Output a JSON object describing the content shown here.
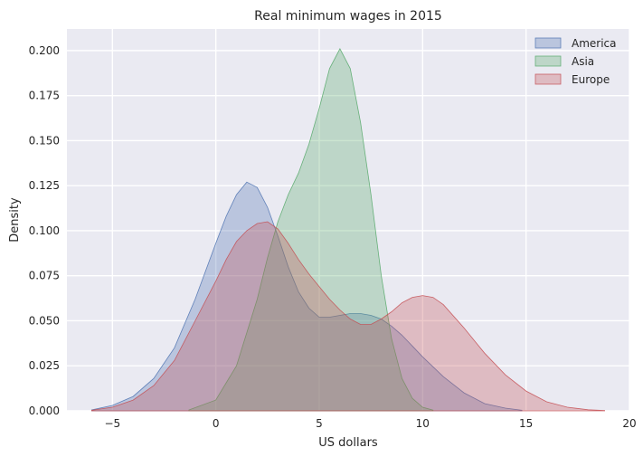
{
  "chart_data": {
    "type": "area",
    "title": "Real minimum wages in 2015",
    "xlabel": "US dollars",
    "ylabel": "Density",
    "xlim": [
      -7.2,
      20
    ],
    "ylim": [
      0,
      0.212
    ],
    "xticks": [
      -5,
      0,
      5,
      10,
      15,
      20
    ],
    "yticks": [
      0.0,
      0.025,
      0.05,
      0.075,
      0.1,
      0.125,
      0.15,
      0.175,
      0.2
    ],
    "ytick_labels": [
      "0.000",
      "0.025",
      "0.050",
      "0.075",
      "0.100",
      "0.125",
      "0.150",
      "0.175",
      "0.200"
    ],
    "grid": true,
    "legend_position": "top-right",
    "series": [
      {
        "name": "America",
        "color": "#4c72b0",
        "x": [
          -6,
          -5,
          -4,
          -3,
          -2,
          -1,
          0,
          0.5,
          1,
          1.5,
          2,
          2.5,
          3,
          3.5,
          4,
          4.5,
          5,
          5.5,
          6,
          6.5,
          7,
          7.5,
          8,
          8.5,
          9,
          9.5,
          10,
          11,
          12,
          13,
          14,
          14.8
        ],
        "y": [
          0.0005,
          0.003,
          0.008,
          0.018,
          0.035,
          0.062,
          0.093,
          0.108,
          0.12,
          0.127,
          0.124,
          0.113,
          0.097,
          0.08,
          0.066,
          0.057,
          0.052,
          0.052,
          0.053,
          0.054,
          0.054,
          0.053,
          0.051,
          0.047,
          0.042,
          0.036,
          0.03,
          0.019,
          0.01,
          0.004,
          0.0015,
          0.0003
        ]
      },
      {
        "name": "Asia",
        "color": "#55a868",
        "x": [
          -1.3,
          0,
          1,
          2,
          2.5,
          3,
          3.5,
          4,
          4.5,
          5,
          5.5,
          6,
          6.5,
          7,
          7.5,
          8,
          8.5,
          9,
          9.5,
          10,
          10.5
        ],
        "y": [
          0.0005,
          0.006,
          0.025,
          0.062,
          0.085,
          0.105,
          0.12,
          0.132,
          0.148,
          0.168,
          0.19,
          0.201,
          0.19,
          0.16,
          0.12,
          0.075,
          0.04,
          0.018,
          0.007,
          0.002,
          0.0004
        ]
      },
      {
        "name": "Europe",
        "color": "#c44e52",
        "x": [
          -6,
          -5,
          -4,
          -3,
          -2,
          -1,
          0,
          0.5,
          1,
          1.5,
          2,
          2.5,
          3,
          3.5,
          4,
          4.5,
          5,
          5.5,
          6,
          6.5,
          7,
          7.5,
          8,
          8.5,
          9,
          9.5,
          10,
          10.5,
          11,
          12,
          13,
          14,
          15,
          16,
          17,
          18,
          18.8
        ],
        "y": [
          0.0003,
          0.002,
          0.006,
          0.014,
          0.028,
          0.05,
          0.072,
          0.084,
          0.094,
          0.1,
          0.104,
          0.105,
          0.101,
          0.093,
          0.084,
          0.076,
          0.069,
          0.062,
          0.056,
          0.051,
          0.048,
          0.048,
          0.051,
          0.055,
          0.06,
          0.063,
          0.064,
          0.063,
          0.059,
          0.046,
          0.032,
          0.02,
          0.011,
          0.005,
          0.002,
          0.0006,
          0.0002
        ]
      }
    ]
  }
}
